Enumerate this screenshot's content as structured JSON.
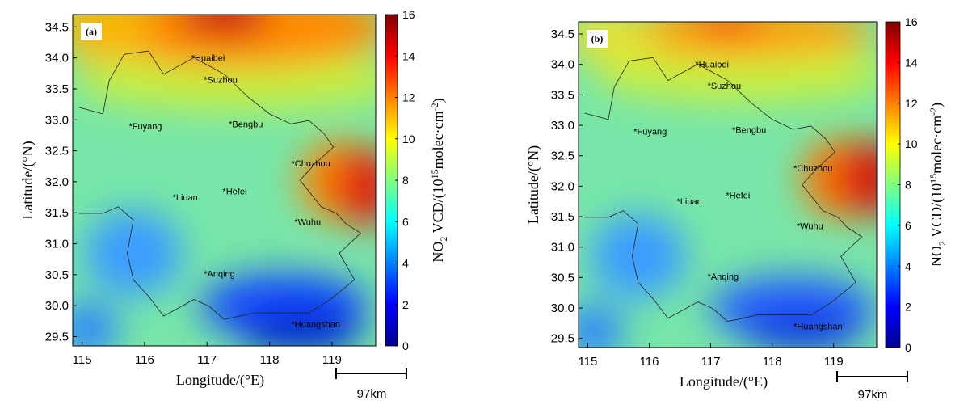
{
  "panels": [
    {
      "label": "(a)",
      "xlabel": "Longitude/(°E)",
      "ylabel": "Latitude/(°N)",
      "xlim": [
        114.85,
        119.7
      ],
      "xticks": [
        115,
        116,
        117,
        118,
        119
      ],
      "ylim": [
        29.35,
        34.7
      ],
      "yticks": [
        29.5,
        {
          "value": 30,
          "label": "30.0"
        },
        30.5,
        {
          "value": 31,
          "label": "31.0"
        },
        31.5,
        {
          "value": 32,
          "label": "32.0"
        },
        32.5,
        {
          "value": 33,
          "label": "33.0"
        },
        33.5,
        {
          "value": 34,
          "label": "34.0"
        },
        34.5
      ],
      "clim": [
        0,
        16
      ],
      "cticks": [
        0,
        2,
        4,
        6,
        8,
        10,
        12,
        14,
        16
      ],
      "colorbar_label": [
        "NO",
        "2",
        " VCD/(10",
        "15",
        "molec·cm",
        "-2",
        ")"
      ],
      "cities": [
        "*Huaibei",
        "*Suzhou",
        "*Fuyang",
        "*Bengbu",
        "*Chuzhou",
        "*Hefei",
        "*Liuan",
        "*Wuhu",
        "*Anqing",
        "*Huangshan"
      ],
      "scale_bar": "97km"
    },
    {
      "label": "(b)",
      "xlabel": "Longitude/(°E)",
      "ylabel": "Latitude/(°N)",
      "xlim": [
        114.85,
        119.7
      ],
      "xticks": [
        115,
        116,
        117,
        118,
        119
      ],
      "ylim": [
        29.35,
        34.7
      ],
      "yticks": [
        29.5,
        {
          "value": 30,
          "label": "30.0"
        },
        30.5,
        {
          "value": 31,
          "label": "31.0"
        },
        31.5,
        {
          "value": 32,
          "label": "32.0"
        },
        32.5,
        {
          "value": 33,
          "label": "33.0"
        },
        33.5,
        {
          "value": 34,
          "label": "34.0"
        },
        34.5
      ],
      "clim": [
        0,
        16
      ],
      "cticks": [
        0,
        2,
        4,
        6,
        8,
        10,
        12,
        14,
        16
      ],
      "colorbar_label": [
        "NO",
        "2",
        " VCD/(10",
        "15",
        "molec·cm",
        "-2",
        ")"
      ],
      "cities": [
        "*Huaibei",
        "*Suzhou",
        "*Fuyang",
        "*Bengbu",
        "*Chuzhou",
        "*Hefei",
        "*Liuan",
        "*Wuhu",
        "*Anqing",
        "*Huangshan"
      ],
      "scale_bar": "97km"
    }
  ]
}
